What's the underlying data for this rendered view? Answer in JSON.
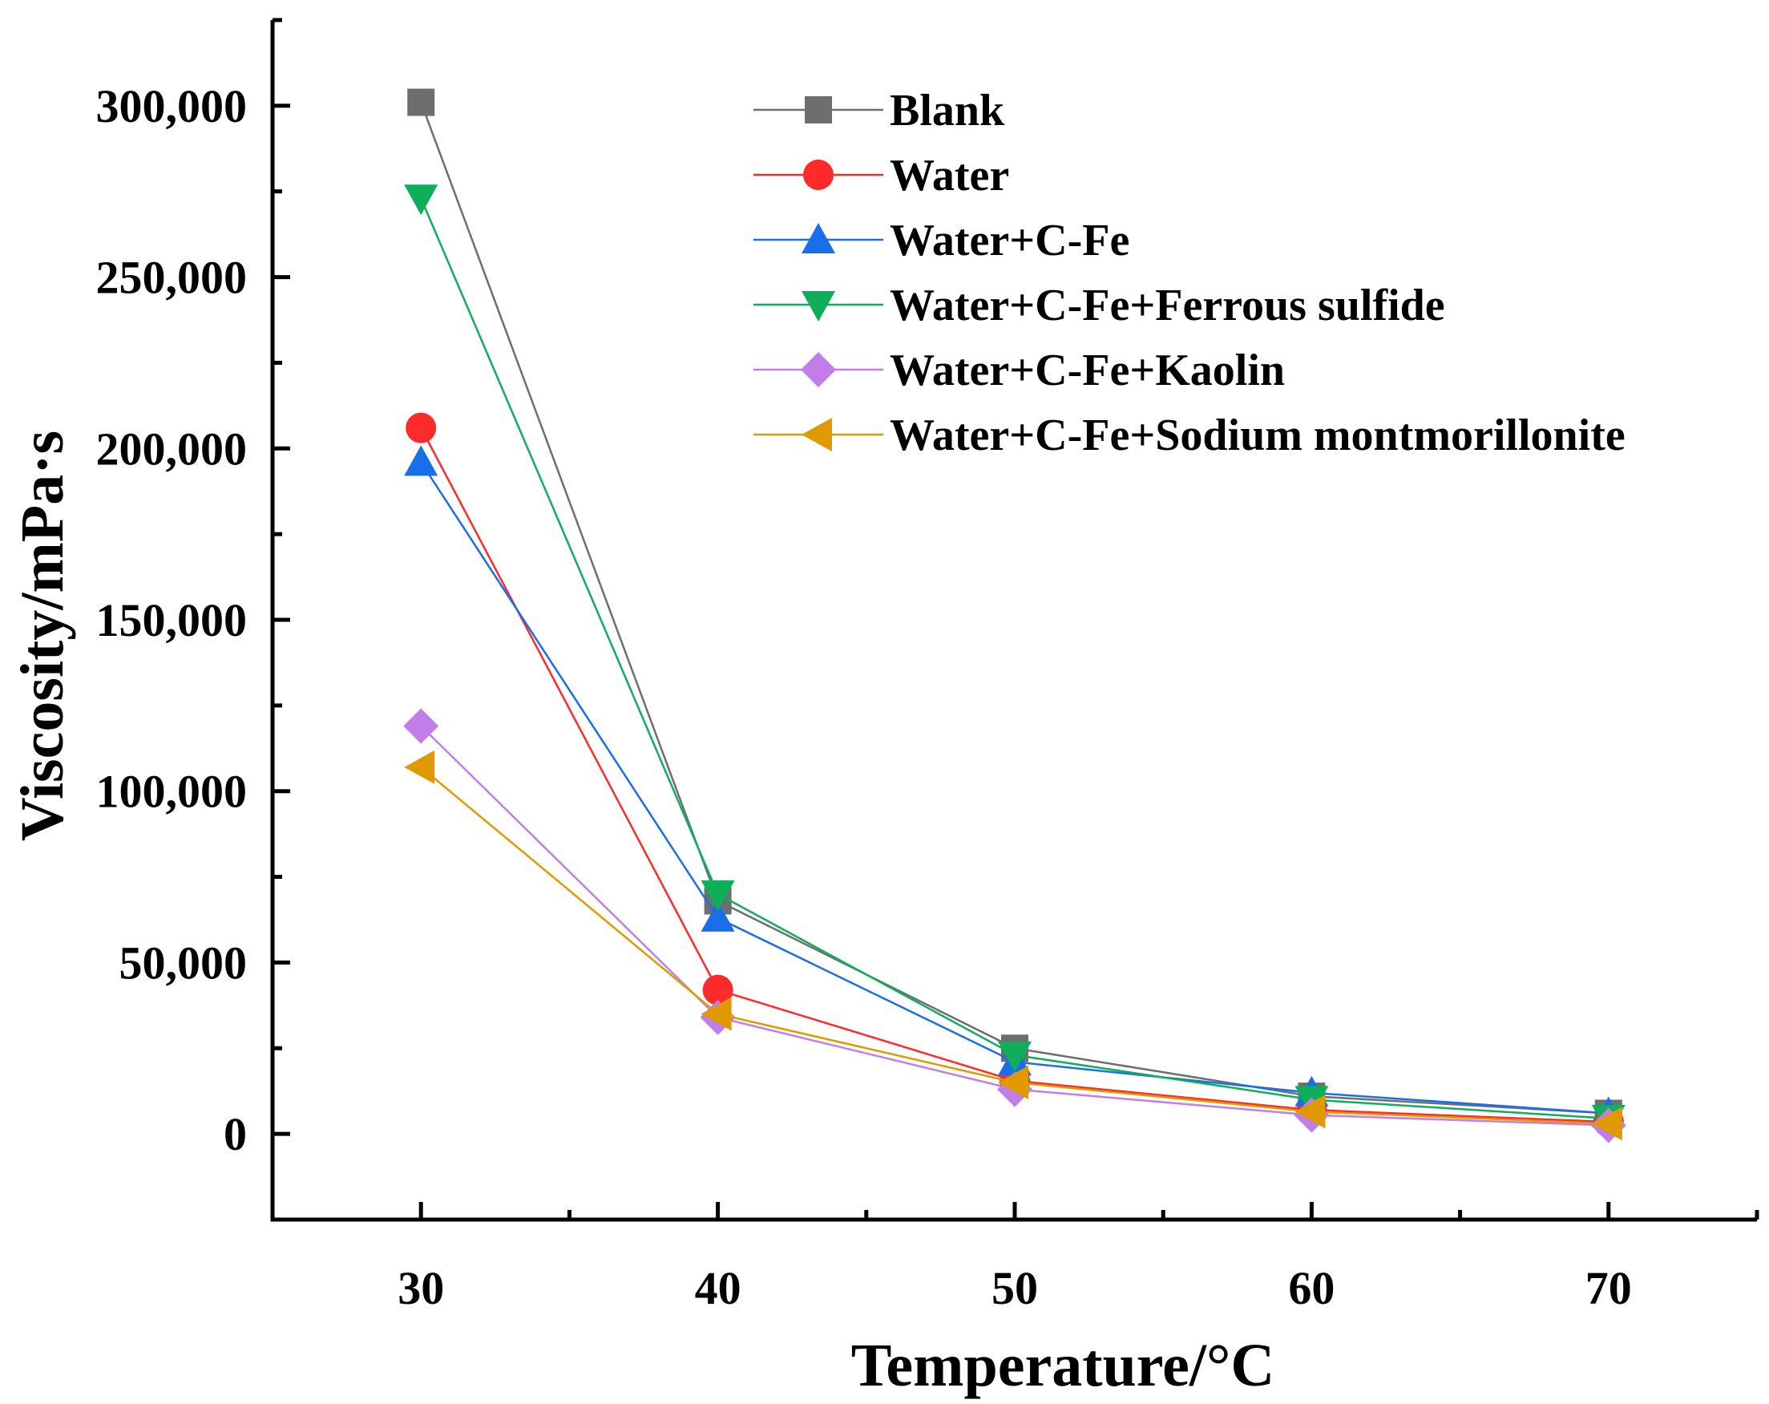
{
  "chart_data": {
    "type": "line",
    "title": "",
    "xlabel": "Temperature/°C",
    "ylabel": "Viscosity/mPa·s",
    "x": [
      30,
      40,
      50,
      60,
      70
    ],
    "xlim": [
      25,
      75
    ],
    "ylim": [
      -25000,
      325000
    ],
    "xticks": [
      30,
      40,
      50,
      60,
      70
    ],
    "xtick_labels": [
      "30",
      "40",
      "50",
      "60",
      "70"
    ],
    "yticks": [
      0,
      50000,
      100000,
      150000,
      200000,
      250000,
      300000
    ],
    "ytick_labels": [
      "0",
      "50,000",
      "100,000",
      "150,000",
      "200,000",
      "250,000",
      "300,000"
    ],
    "legend_position": "top-right",
    "series": [
      {
        "name": "Blank",
        "color": "#6e6e6e",
        "marker": "square",
        "values": [
          301000,
          68000,
          25000,
          11000,
          6000
        ]
      },
      {
        "name": "Water",
        "color": "#ff2a2a",
        "marker": "circle",
        "values": [
          206000,
          42000,
          15500,
          7000,
          3500
        ]
      },
      {
        "name": "Water+C-Fe",
        "color": "#1a6fe8",
        "marker": "triangle-up",
        "values": [
          196000,
          63000,
          21000,
          12000,
          6000
        ]
      },
      {
        "name": "Water+C-Fe+Ferrous sulfide",
        "color": "#0fae5a",
        "marker": "triangle-down",
        "values": [
          273000,
          70000,
          23000,
          10000,
          4500
        ]
      },
      {
        "name": "Water+C-Fe+Kaolin",
        "color": "#c27ee8",
        "marker": "diamond",
        "values": [
          119000,
          34000,
          13000,
          5500,
          2500
        ]
      },
      {
        "name": "Water+C-Fe+Sodium montmorillonite",
        "color": "#e09a00",
        "marker": "triangle-left",
        "values": [
          107000,
          35000,
          15000,
          6500,
          3000
        ]
      }
    ]
  }
}
